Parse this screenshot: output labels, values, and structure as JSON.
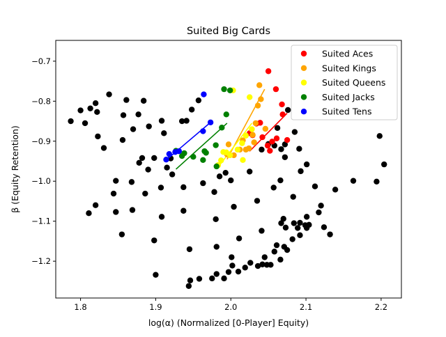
{
  "chart_data": {
    "type": "scatter",
    "title": "Suited Big Cards",
    "xlabel": "log(α) (Normalized [0-Player] Equity)",
    "ylabel": "β (Equity Retention)",
    "xlim": [
      1.767,
      2.227
    ],
    "ylim": [
      -1.292,
      -0.648
    ],
    "xticks": [
      1.8,
      1.9,
      2.0,
      2.1,
      2.2
    ],
    "xtick_labels": [
      "1.8",
      "1.9",
      "2.0",
      "2.1",
      "2.2"
    ],
    "yticks": [
      -1.2,
      -1.1,
      -1.0,
      -0.9,
      -0.8,
      -0.7
    ],
    "ytick_labels": [
      "−1.2",
      "−1.1",
      "−1.0",
      "−0.9",
      "−0.8",
      "−0.7"
    ],
    "grid": false,
    "legend_position": "top-right",
    "colors": {
      "other": "#000000",
      "aces": "#ff0000",
      "kings": "#ffa500",
      "queens": "#ffff00",
      "jacks": "#008000",
      "tens": "#0000ff"
    },
    "other_points": {
      "color": "#000000",
      "points": [
        [
          1.787,
          -0.85
        ],
        [
          1.8,
          -0.823
        ],
        [
          1.806,
          -0.855
        ],
        [
          1.813,
          -0.818
        ],
        [
          1.82,
          -0.805
        ],
        [
          1.822,
          -0.827
        ],
        [
          1.838,
          -0.783
        ],
        [
          1.823,
          -0.888
        ],
        [
          1.831,
          -0.917
        ],
        [
          1.857,
          -0.835
        ],
        [
          1.861,
          -0.797
        ],
        [
          1.87,
          -0.87
        ],
        [
          1.877,
          -0.833
        ],
        [
          1.884,
          -0.799
        ],
        [
          1.891,
          -0.863
        ],
        [
          1.856,
          -0.897
        ],
        [
          1.878,
          -0.954
        ],
        [
          1.882,
          -0.942
        ],
        [
          1.89,
          -0.971
        ],
        [
          1.898,
          -0.942
        ],
        [
          1.908,
          -0.849
        ],
        [
          1.911,
          -0.88
        ],
        [
          1.92,
          -0.943
        ],
        [
          1.922,
          -0.983
        ],
        [
          1.935,
          -0.85
        ],
        [
          1.941,
          -0.849
        ],
        [
          1.948,
          -0.821
        ],
        [
          1.957,
          -0.798
        ],
        [
          1.937,
          -1.015
        ],
        [
          1.915,
          -0.966
        ],
        [
          1.847,
          -0.999
        ],
        [
          1.844,
          -1.031
        ],
        [
          1.847,
          -1.077
        ],
        [
          1.868,
          -1.002
        ],
        [
          1.869,
          -1.072
        ],
        [
          1.886,
          -1.031
        ],
        [
          1.907,
          -1.016
        ],
        [
          1.908,
          -1.089
        ],
        [
          1.937,
          -1.074
        ],
        [
          1.82,
          -1.06
        ],
        [
          1.811,
          -1.08
        ],
        [
          1.855,
          -1.133
        ],
        [
          1.898,
          -1.148
        ],
        [
          1.963,
          -1.005
        ],
        [
          1.978,
          -1.027
        ],
        [
          1.985,
          -0.988
        ],
        [
          1.993,
          -0.979
        ],
        [
          2.0,
          -0.998
        ],
        [
          2.004,
          -1.064
        ],
        [
          1.98,
          -1.095
        ],
        [
          1.945,
          -1.17
        ],
        [
          1.981,
          -1.164
        ],
        [
          1.9,
          -1.234
        ],
        [
          1.944,
          -1.262
        ],
        [
          1.946,
          -1.248
        ],
        [
          1.958,
          -1.244
        ],
        [
          1.975,
          -1.243
        ],
        [
          1.981,
          -1.232
        ],
        [
          1.991,
          -1.243
        ],
        [
          1.997,
          -1.227
        ],
        [
          2.002,
          -1.211
        ],
        [
          2.001,
          -1.19
        ],
        [
          2.01,
          -1.226
        ],
        [
          2.019,
          -1.216
        ],
        [
          2.026,
          -1.204
        ],
        [
          2.036,
          -1.212
        ],
        [
          2.042,
          -1.208
        ],
        [
          2.045,
          -1.19
        ],
        [
          2.048,
          -1.209
        ],
        [
          2.053,
          -1.209
        ],
        [
          2.058,
          -1.176
        ],
        [
          2.061,
          -1.16
        ],
        [
          2.066,
          -1.196
        ],
        [
          2.071,
          -1.164
        ],
        [
          2.075,
          -1.172
        ],
        [
          2.073,
          -1.116
        ],
        [
          2.082,
          -1.145
        ],
        [
          2.089,
          -1.117
        ],
        [
          2.092,
          -1.135
        ],
        [
          2.099,
          -1.11
        ],
        [
          2.101,
          -1.117
        ],
        [
          2.104,
          -1.109
        ],
        [
          2.084,
          -1.105
        ],
        [
          2.092,
          -1.104
        ],
        [
          2.101,
          -1.089
        ],
        [
          2.011,
          -1.143
        ],
        [
          2.041,
          -1.124
        ],
        [
          2.035,
          -1.049
        ],
        [
          2.057,
          -1.016
        ],
        [
          2.066,
          -0.998
        ],
        [
          2.07,
          -1.094
        ],
        [
          2.067,
          -1.105
        ],
        [
          2.083,
          -1.039
        ],
        [
          2.093,
          -0.975
        ],
        [
          2.101,
          -0.958
        ],
        [
          2.112,
          -1.013
        ],
        [
          2.117,
          -1.078
        ],
        [
          2.12,
          -1.061
        ],
        [
          2.124,
          -1.115
        ],
        [
          2.132,
          -1.133
        ],
        [
          2.139,
          -1.021
        ],
        [
          2.163,
          -0.999
        ],
        [
          2.194,
          -1.001
        ],
        [
          2.198,
          -0.887
        ],
        [
          2.204,
          -0.958
        ],
        [
          2.041,
          -0.921
        ],
        [
          2.025,
          -0.976
        ],
        [
          2.05,
          -0.907
        ],
        [
          2.058,
          -0.911
        ],
        [
          2.062,
          -0.867
        ],
        [
          2.067,
          -0.92
        ],
        [
          2.072,
          -0.94
        ],
        [
          2.076,
          -0.822
        ],
        [
          2.085,
          -0.877
        ],
        [
          2.091,
          -0.919
        ],
        [
          2.072,
          -0.908
        ]
      ]
    },
    "series": [
      {
        "name": "Suited Aces",
        "color": "#ff0000",
        "points": [
          [
            2.025,
            -0.88
          ],
          [
            2.029,
            -0.885
          ],
          [
            2.034,
            -0.856
          ],
          [
            2.039,
            -0.854
          ],
          [
            2.042,
            -0.89
          ],
          [
            2.049,
            -0.911
          ],
          [
            2.05,
            -0.725
          ],
          [
            2.052,
            -0.924
          ],
          [
            2.055,
            -0.901
          ],
          [
            2.06,
            -0.77
          ],
          [
            2.061,
            -0.893
          ],
          [
            2.068,
            -0.808
          ],
          [
            2.069,
            -0.833
          ],
          [
            2.075,
            -0.897
          ]
        ],
        "trend": [
          [
            2.025,
            -0.925
          ],
          [
            2.075,
            -0.83
          ]
        ]
      },
      {
        "name": "Suited Kings",
        "color": "#ffa500",
        "points": [
          [
            1.995,
            -0.933
          ],
          [
            1.997,
            -0.908
          ],
          [
            2.004,
            -0.935
          ],
          [
            2.012,
            -0.921
          ],
          [
            2.016,
            -0.898
          ],
          [
            2.02,
            -0.921
          ],
          [
            2.024,
            -0.918
          ],
          [
            2.029,
            -0.884
          ],
          [
            2.031,
            -0.903
          ],
          [
            2.033,
            -0.855
          ],
          [
            2.036,
            -0.811
          ],
          [
            2.038,
            -0.76
          ],
          [
            2.04,
            -0.795
          ],
          [
            2.046,
            -0.869
          ]
        ],
        "trend": [
          [
            1.995,
            -0.945
          ],
          [
            2.045,
            -0.77
          ]
        ]
      },
      {
        "name": "Suited Queens",
        "color": "#ffff00",
        "points": [
          [
            1.983,
            -0.96
          ],
          [
            1.987,
            -0.948
          ],
          [
            1.99,
            -0.927
          ],
          [
            1.994,
            -0.928
          ],
          [
            1.999,
            -0.935
          ],
          [
            2.003,
            -0.773
          ],
          [
            2.009,
            -0.921
          ],
          [
            2.015,
            -0.905
          ],
          [
            2.016,
            -0.947
          ],
          [
            2.02,
            -0.886
          ],
          [
            2.025,
            -0.79
          ],
          [
            2.028,
            -0.87
          ]
        ],
        "trend": [
          [
            1.983,
            -0.965
          ],
          [
            2.028,
            -0.855
          ]
        ]
      },
      {
        "name": "Suited Jacks",
        "color": "#008000",
        "points": [
          [
            1.927,
            -0.924
          ],
          [
            1.935,
            -0.937
          ],
          [
            1.938,
            -0.93
          ],
          [
            1.95,
            -0.939
          ],
          [
            1.963,
            -0.947
          ],
          [
            1.965,
            -0.925
          ],
          [
            1.967,
            -0.929
          ],
          [
            1.98,
            -0.91
          ],
          [
            1.981,
            -0.963
          ],
          [
            1.988,
            -0.866
          ],
          [
            1.991,
            -0.77
          ],
          [
            1.994,
            -0.833
          ],
          [
            1.999,
            -0.773
          ]
        ],
        "trend": [
          [
            1.927,
            -0.97
          ],
          [
            1.995,
            -0.855
          ]
        ]
      },
      {
        "name": "Suited Tens",
        "color": "#0000ff",
        "points": [
          [
            1.914,
            -0.946
          ],
          [
            1.918,
            -0.932
          ],
          [
            1.926,
            -0.927
          ],
          [
            1.931,
            -0.925
          ],
          [
            1.963,
            -0.875
          ],
          [
            1.964,
            -0.783
          ],
          [
            1.973,
            -0.853
          ]
        ],
        "trend": [
          [
            1.914,
            -0.947
          ],
          [
            1.973,
            -0.853
          ]
        ]
      }
    ]
  }
}
